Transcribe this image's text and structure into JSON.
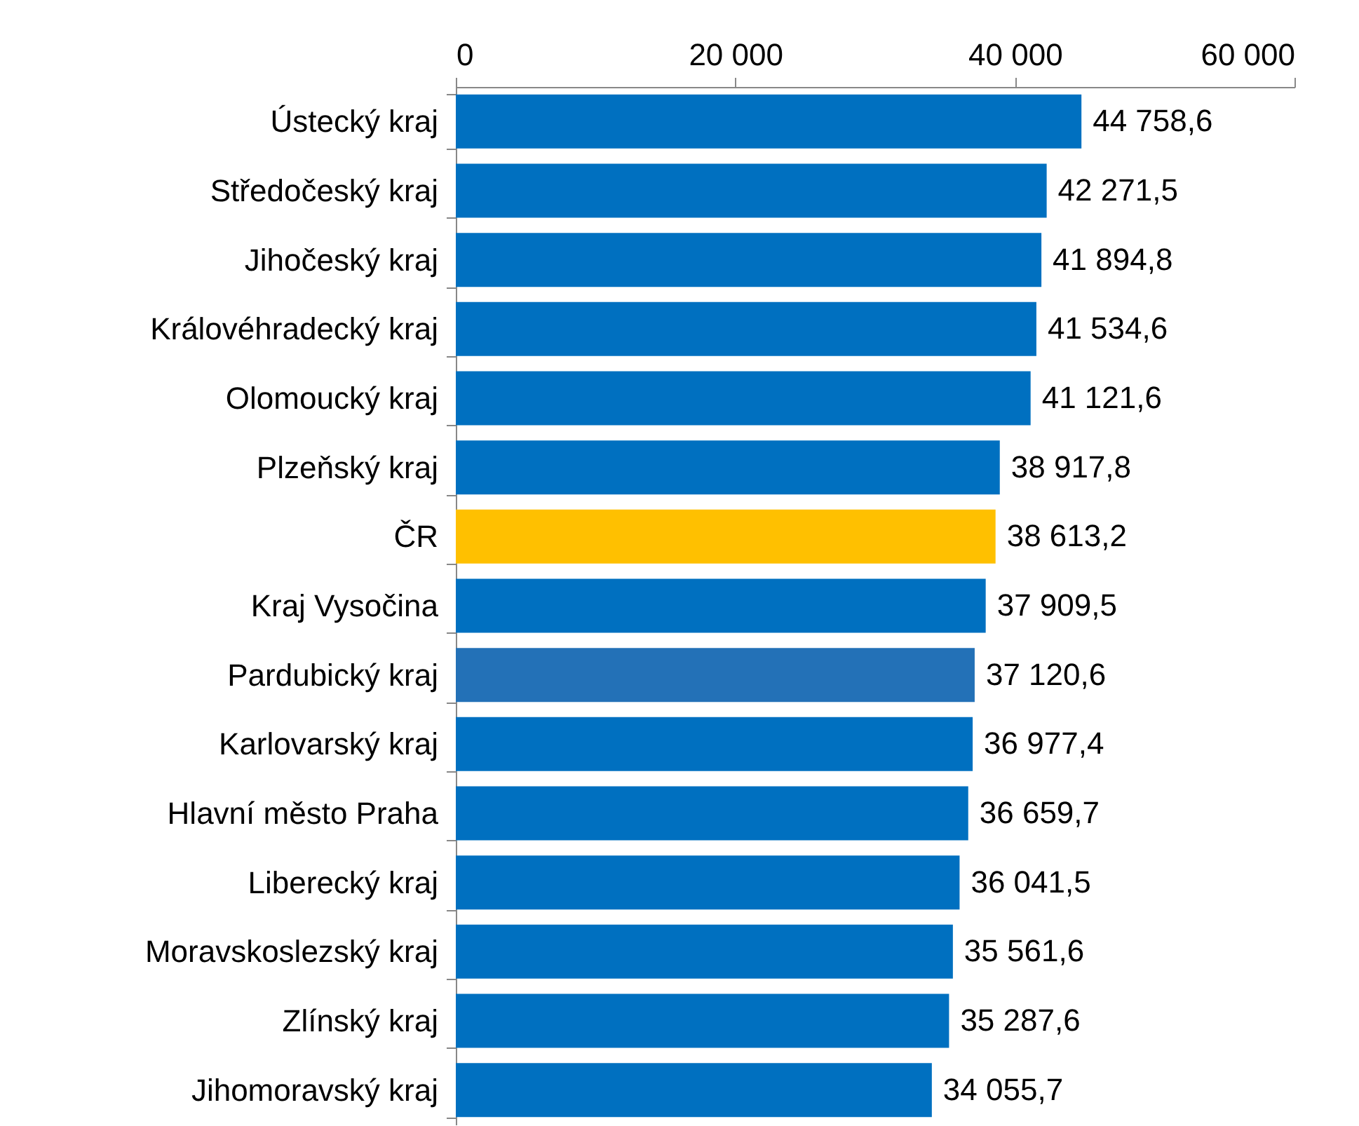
{
  "chart_data": {
    "type": "bar",
    "orientation": "horizontal",
    "categories": [
      "Ústecký kraj",
      "Středočeský kraj",
      "Jihočeský kraj",
      "Královéhradecký kraj",
      "Olomoucký kraj",
      "Plzeňský kraj",
      "ČR",
      "Kraj Vysočina",
      "Pardubický kraj",
      "Karlovarský kraj",
      "Hlavní město Praha",
      "Liberecký kraj",
      "Moravskoslezský kraj",
      "Zlínský kraj",
      "Jihomoravský kraj"
    ],
    "values": [
      44758.6,
      42271.5,
      41894.8,
      41534.6,
      41121.6,
      38917.8,
      38613.2,
      37909.5,
      37120.6,
      36977.4,
      36659.7,
      36041.5,
      35561.6,
      35287.6,
      34055.7
    ],
    "colors": [
      "#0070c0",
      "#0070c0",
      "#0070c0",
      "#0070c0",
      "#0070c0",
      "#0070c0",
      "#ffc000",
      "#0070c0",
      "#2371b7",
      "#0070c0",
      "#0070c0",
      "#0070c0",
      "#0070c0",
      "#0070c0",
      "#0070c0"
    ],
    "value_labels": [
      "44 758,6",
      "42 271,5",
      "41 894,8",
      "41 534,6",
      "41 121,6",
      "38 917,8",
      "38 613,2",
      "37 909,5",
      "37 120,6",
      "36 977,4",
      "36 659,7",
      "36 041,5",
      "35 561,6",
      "35 287,6",
      "34 055,7"
    ],
    "xlim": [
      0,
      60000
    ],
    "xticks": [
      {
        "value": 0,
        "label": "0"
      },
      {
        "value": 20000,
        "label": "20 000"
      },
      {
        "value": 40000,
        "label": "40 000"
      },
      {
        "value": 60000,
        "label": "60 000"
      }
    ],
    "grid": false
  }
}
